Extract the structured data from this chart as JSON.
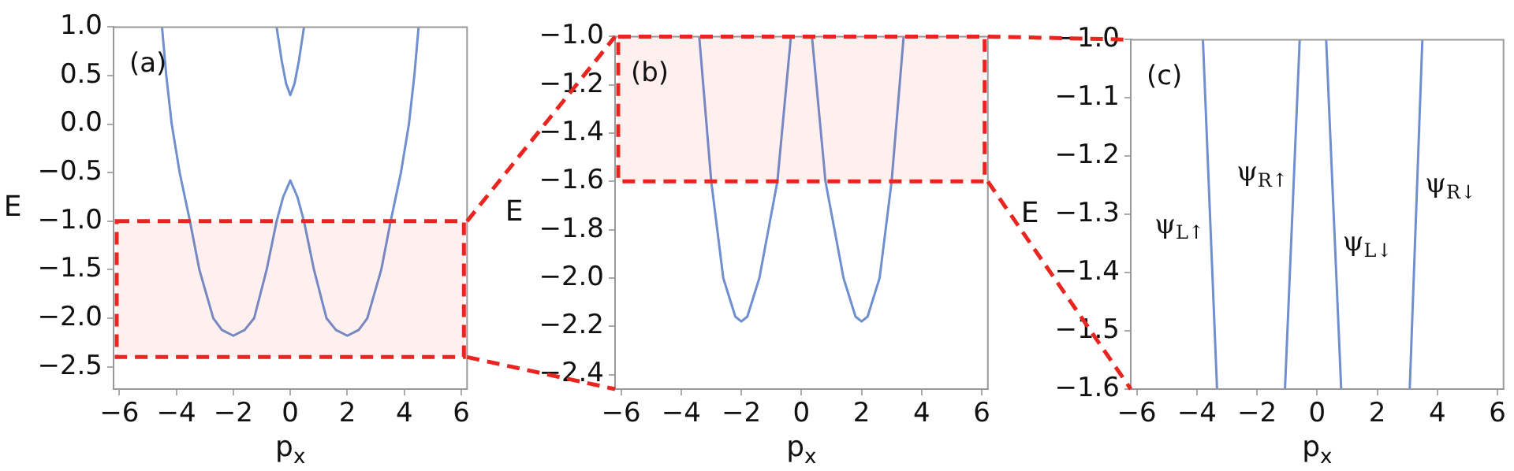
{
  "chart_data": [
    {
      "type": "line",
      "xlabel": "p$_{x}$",
      "ylabel": "E",
      "marker": "none",
      "annotations": [
        "(a)"
      ],
      "xlim": [
        -6.2,
        6.2
      ],
      "ylim": [
        -2.73,
        1.0
      ],
      "xticks": [
        {
          "value": -6,
          "label": "−6"
        },
        {
          "value": -4,
          "label": "−4"
        },
        {
          "value": -2,
          "label": "−2"
        },
        0,
        2,
        4,
        6
      ],
      "yticks": [
        {
          "value": 1,
          "label": "1.0"
        },
        {
          "value": 0.5,
          "label": "0.5"
        },
        {
          "value": 0,
          "label": "0.0"
        },
        {
          "value": -0.5,
          "label": "−0.5"
        },
        {
          "value": -1,
          "label": "−1.0"
        },
        {
          "value": -1.5,
          "label": "−1.5"
        },
        {
          "value": -2,
          "label": "−2.0"
        },
        {
          "value": -2.5,
          "label": "−2.5"
        }
      ],
      "bands": [
        {
          "axis": "y",
          "from": -2.4,
          "to": -1.0,
          "color": "#e8251e"
        }
      ],
      "series": [
        {
          "color": "#6f8fcf",
          "x": [
            -4.5,
            -4.35,
            -4.16,
            -3.88,
            -3.52,
            -3.19,
            -2.7,
            -2.4,
            -2,
            -1.6,
            -1.27,
            -0.83,
            -0.48,
            -0.25,
            0,
            0.25,
            0.48,
            0.83,
            1.27,
            1.6,
            2,
            2.4,
            2.7,
            3.19,
            3.52,
            3.88,
            4.16,
            4.35,
            4.5
          ],
          "values": [
            1,
            0.5,
            0,
            -0.5,
            -1,
            -1.5,
            -2,
            -2.12,
            -2.18,
            -2.12,
            -2,
            -1.5,
            -1,
            -0.75,
            -0.58,
            -0.75,
            -1,
            -1.5,
            -2,
            -2.12,
            -2.18,
            -2.12,
            -2,
            -1.5,
            -1,
            -0.5,
            0,
            0.5,
            1
          ]
        },
        {
          "color": "#6f8fcf",
          "x": [
            -0.48,
            -0.3,
            -0.15,
            0,
            0.15,
            0.3,
            0.48
          ],
          "values": [
            1,
            0.65,
            0.42,
            0.3,
            0.42,
            0.65,
            1
          ]
        }
      ]
    },
    {
      "type": "line",
      "xlabel": "p$_{x}$",
      "ylabel": "E",
      "marker": "none",
      "annotations": [
        "(b)"
      ],
      "xlim": [
        -6.2,
        6.2
      ],
      "ylim": [
        -2.46,
        -1.0
      ],
      "xticks": [
        {
          "value": -6,
          "label": "−6"
        },
        {
          "value": -4,
          "label": "−4"
        },
        {
          "value": -2,
          "label": "−2"
        },
        0,
        2,
        4,
        6
      ],
      "yticks": [
        {
          "value": -1,
          "label": "−1.0"
        },
        {
          "value": -1.2,
          "label": "−1.2"
        },
        {
          "value": -1.4,
          "label": "−1.4"
        },
        {
          "value": -1.6,
          "label": "−1.6"
        },
        {
          "value": -1.8,
          "label": "−1.8"
        },
        {
          "value": -2,
          "label": "−2.0"
        },
        {
          "value": -2.2,
          "label": "−2.2"
        },
        {
          "value": -2.4,
          "label": "−2.4"
        }
      ],
      "bands": [
        {
          "axis": "y",
          "from": -1.6,
          "to": -1.0,
          "color": "#e8251e"
        }
      ],
      "series": [
        {
          "color": "#6f8fcf",
          "x": [
            -3.4,
            -3.0,
            -2.6,
            -2.2,
            -2.0,
            -1.8,
            -1.4,
            -0.8,
            -0.35,
            0,
            0.35,
            0.8,
            1.4,
            1.8,
            2.0,
            2.2,
            2.6,
            3.0,
            3.4
          ],
          "values": [
            -1,
            -1.6,
            -2.0,
            -2.16,
            -2.18,
            -2.16,
            -2.0,
            -1.6,
            -1,
            null,
            -1,
            -1.6,
            -2.0,
            -2.16,
            -2.18,
            -2.16,
            -2.0,
            -1.6,
            -1
          ]
        }
      ]
    },
    {
      "type": "line",
      "xlabel": "p$_{x}$",
      "ylabel": "E",
      "marker": "none",
      "annotations": [
        "(c)",
        {
          "text": "ψ$_{L↑}$",
          "x": -3.55,
          "y": -1.32
        },
        {
          "text": "ψ$_{R↑}$",
          "x": -0.77,
          "y": -1.23
        },
        {
          "text": "ψ$_{L↓}$",
          "x": 0.59,
          "y": -1.35
        },
        {
          "text": "ψ$_{R↓}$",
          "x": 3.33,
          "y": -1.25
        }
      ],
      "xlim": [
        -6.2,
        6.2
      ],
      "ylim": [
        -1.6,
        -1.0
      ],
      "xticks": [
        {
          "value": -6,
          "label": "−6"
        },
        {
          "value": -4,
          "label": "−4"
        },
        {
          "value": -2,
          "label": "−2"
        },
        0,
        2,
        4,
        6
      ],
      "yticks": [
        {
          "value": -1,
          "label": "−1.0"
        },
        {
          "value": -1.1,
          "label": "−1.1"
        },
        {
          "value": -1.2,
          "label": "−1.2"
        },
        {
          "value": -1.3,
          "label": "−1.3"
        },
        {
          "value": -1.4,
          "label": "−1.4"
        },
        {
          "value": -1.5,
          "label": "−1.5"
        },
        {
          "value": -1.6,
          "label": "−1.6"
        }
      ],
      "series": [
        {
          "color": "#6f8fcf",
          "x": [
            -3.8,
            -3.33,
            -2.2,
            -1.07,
            -0.58,
            0,
            0.3,
            0.8,
            2,
            3.08,
            3.5
          ],
          "values": [
            -1,
            -1.6,
            null,
            -1.6,
            -1,
            null,
            -1,
            -1.6,
            null,
            -1.6,
            -1
          ]
        }
      ]
    }
  ]
}
